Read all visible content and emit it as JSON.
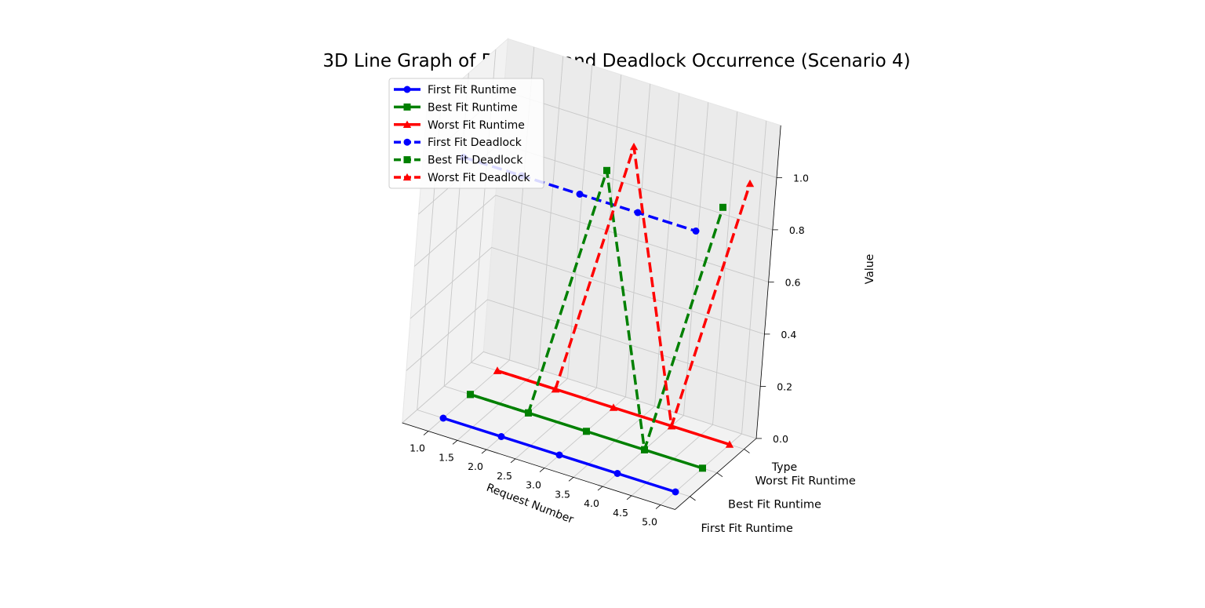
{
  "chart_data": {
    "type": "line",
    "projection": "3d",
    "title": "3D Line Graph of Runtime and Deadlock Occurrence (Scenario 4)",
    "xlabel": "Request Number",
    "ylabel": "Type",
    "zlabel": "Value",
    "x": [
      1,
      2,
      3,
      4,
      5
    ],
    "xlim": [
      1.0,
      5.0
    ],
    "zlim": [
      0.0,
      1.0
    ],
    "x_ticks": [
      "1.0",
      "1.5",
      "2.0",
      "2.5",
      "3.0",
      "3.5",
      "4.0",
      "4.5",
      "5.0"
    ],
    "z_ticks": [
      "0.0",
      "0.2",
      "0.4",
      "0.6",
      "0.8",
      "1.0"
    ],
    "categories": [
      "First Fit Runtime",
      "Best Fit Runtime",
      "Worst Fit Runtime"
    ],
    "grid": true,
    "legend_position": "upper-left",
    "series": [
      {
        "name": "First Fit Runtime",
        "category": 0,
        "values": [
          0,
          0,
          0,
          0,
          0
        ],
        "color": "#0000ff",
        "marker": "circle",
        "linestyle": "solid"
      },
      {
        "name": "Best Fit Runtime",
        "category": 1,
        "values": [
          0,
          0,
          0,
          0,
          0
        ],
        "color": "#008000",
        "marker": "square",
        "linestyle": "solid"
      },
      {
        "name": "Worst Fit Runtime",
        "category": 2,
        "values": [
          0,
          0,
          0,
          0,
          0
        ],
        "color": "#ff0000",
        "marker": "triangle",
        "linestyle": "solid"
      },
      {
        "name": "First Fit Deadlock",
        "category": 0,
        "values": [
          1,
          1,
          1,
          1,
          1
        ],
        "color": "#0000ff",
        "marker": "circle",
        "linestyle": "dashed"
      },
      {
        "name": "Best Fit Deadlock",
        "category": 1,
        "values": [
          0,
          0,
          1,
          0,
          1
        ],
        "color": "#008000",
        "marker": "square",
        "linestyle": "dashed"
      },
      {
        "name": "Worst Fit Deadlock",
        "category": 2,
        "values": [
          0,
          0,
          1,
          0,
          1
        ],
        "color": "#ff0000",
        "marker": "triangle",
        "linestyle": "dashed"
      }
    ]
  }
}
